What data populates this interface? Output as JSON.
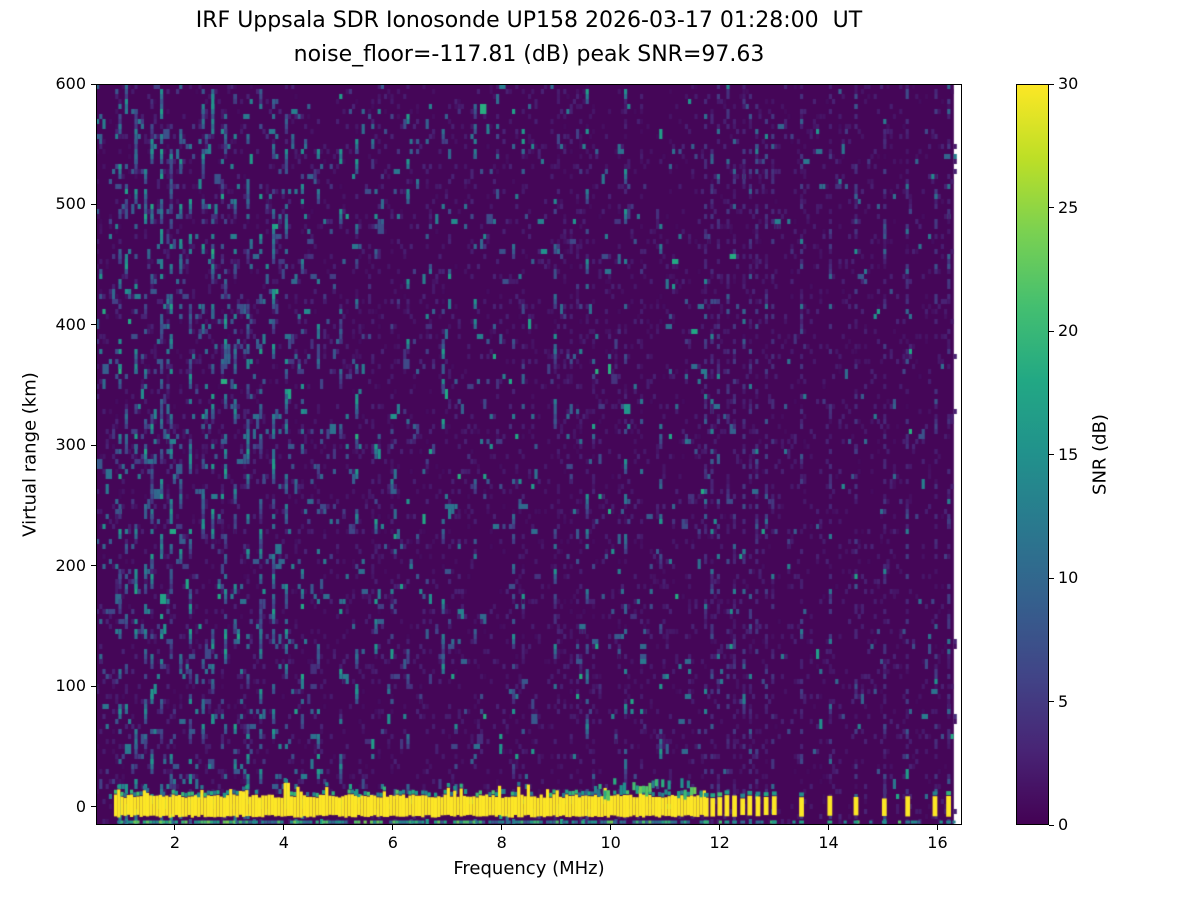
{
  "chart_data": {
    "type": "heatmap",
    "title": "IRF Uppsala SDR Ionosonde UP158 2026-03-17 01:28:00  UT",
    "subtitle": "noise_floor=-117.81 (dB) peak SNR=97.63",
    "xlabel": "Frequency (MHz)",
    "ylabel": "Virtual range (km)",
    "colorbar_label": "SNR (dB)",
    "xlim": [
      0.55,
      16.45
    ],
    "ylim": [
      -15,
      600
    ],
    "clim": [
      0,
      30
    ],
    "x_ticks": [
      2,
      4,
      6,
      8,
      10,
      12,
      14,
      16
    ],
    "x_tick_labels": [
      "2",
      "4",
      "6",
      "8",
      "10",
      "12",
      "14",
      "16"
    ],
    "y_ticks": [
      0,
      100,
      200,
      300,
      400,
      500,
      600
    ],
    "y_tick_labels": [
      "0",
      "100",
      "200",
      "300",
      "400",
      "500",
      "600"
    ],
    "colorbar_ticks": [
      0,
      5,
      10,
      15,
      20,
      25,
      30
    ],
    "colorbar_tick_labels": [
      "0",
      "5",
      "10",
      "15",
      "20",
      "25",
      "30"
    ],
    "colormap": "viridis",
    "colormap_stops": [
      [
        0.0,
        "#440154"
      ],
      [
        0.1,
        "#482475"
      ],
      [
        0.2,
        "#414487"
      ],
      [
        0.3,
        "#355f8d"
      ],
      [
        0.4,
        "#2a788e"
      ],
      [
        0.5,
        "#21918c"
      ],
      [
        0.6,
        "#22a884"
      ],
      [
        0.7,
        "#44bf70"
      ],
      [
        0.8,
        "#7ad151"
      ],
      [
        0.9,
        "#bddf26"
      ],
      [
        1.0,
        "#fde725"
      ]
    ],
    "background_snr_db": 0,
    "data_extent_mhz": [
      0.88,
      16.3
    ],
    "features": {
      "ground_echo_band": {
        "description": "continuous saturated near-zero-range echo",
        "freq_range_mhz": [
          0.88,
          11.7
        ],
        "virtual_range_km": [
          -8,
          10
        ],
        "snr_db": 30
      },
      "bottom_edge_line": {
        "description": "thin mottled green line along bottom edge",
        "freq_range_mhz": [
          0.88,
          16.28
        ],
        "virtual_range_km": [
          -13,
          -11
        ],
        "snr_db": 18
      },
      "echo_enhancement": {
        "description": "green scatter just above echo band near band end",
        "freq_range_mhz": [
          9.6,
          11.65
        ],
        "virtual_range_km": [
          10,
          24
        ]
      },
      "pulse_frequencies_mhz": [
        11.75,
        11.87,
        12.0,
        12.13,
        12.27,
        12.42,
        12.55,
        12.7,
        12.85,
        13.0,
        13.5,
        14.02,
        14.5,
        15.02,
        15.45,
        15.95,
        16.2
      ],
      "interference_frequencies_mhz": [
        0.98,
        1.12,
        1.3,
        1.45,
        1.6,
        1.75,
        1.92,
        2.1,
        2.3,
        2.52,
        2.72,
        2.92,
        3.1,
        3.32,
        3.55,
        3.8,
        4.05,
        4.32,
        4.62,
        5.05,
        5.35,
        5.72,
        6.3,
        6.95,
        7.5,
        8.2,
        9.0,
        9.55,
        10.3,
        10.9
      ],
      "noise_speckle_snr_db": [
        4,
        18
      ]
    }
  }
}
